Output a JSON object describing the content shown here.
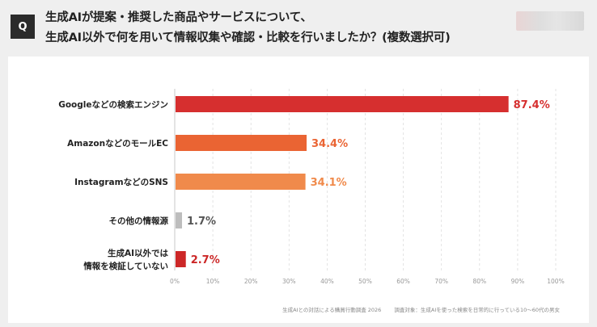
{
  "question": {
    "badge": "Q",
    "line1": "生成AIが提案・推奨した商品やサービスについて、",
    "line2": "生成AI以外で何を用いて情報収集や確認・比較を行いましたか？(複数選択可)"
  },
  "chart_data": {
    "type": "bar",
    "orientation": "horizontal",
    "categories": [
      [
        "Googleなどの検索エンジン"
      ],
      [
        "AmazonなどのモールEC"
      ],
      [
        "InstagramなどのSNS"
      ],
      [
        "その他の情報源"
      ],
      [
        "生成AI以外では",
        "情報を検証していない"
      ]
    ],
    "values": [
      87.4,
      34.4,
      34.1,
      1.7,
      2.7
    ],
    "value_labels": [
      "87.4%",
      "34.4%",
      "34.1%",
      "1.7%",
      "2.7%"
    ],
    "bar_colors": [
      "#d62f2f",
      "#ea6433",
      "#f08a4b",
      "#bdbdbd",
      "#cc2727"
    ],
    "label_colors": [
      "#d62f2f",
      "#ea6433",
      "#f08a4b",
      "#555555",
      "#cc2727"
    ],
    "xlim": [
      0,
      100
    ],
    "xticks": [
      0,
      10,
      20,
      30,
      40,
      50,
      60,
      70,
      80,
      90,
      100
    ],
    "xtick_labels": [
      "0%",
      "10%",
      "20%",
      "30%",
      "40%",
      "50%",
      "60%",
      "70%",
      "80%",
      "90%",
      "100%"
    ],
    "grid": "vertical-dashed"
  },
  "footnote": {
    "source": "生成AIとの対話による購買行動調査 2026",
    "subject": "調査対象：生成AIを使った検索を日常的に行っている10〜60代の男女"
  }
}
